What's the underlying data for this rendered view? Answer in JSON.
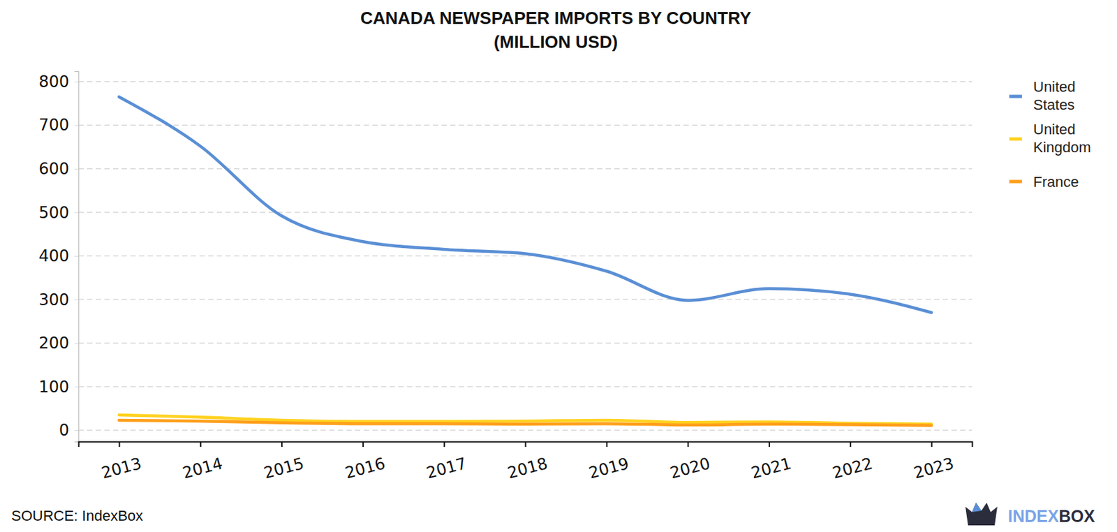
{
  "chart_data": {
    "type": "line",
    "title": [
      "CANADA NEWSPAPER IMPORTS BY COUNTRY",
      "(MILLION USD)"
    ],
    "categories": [
      "2013",
      "2014",
      "2015",
      "2016",
      "2017",
      "2018",
      "2019",
      "2020",
      "2021",
      "2022",
      "2023"
    ],
    "series": [
      {
        "name": "United States",
        "color": "#5a8fd5",
        "values": [
          765,
          652,
          492,
          433,
          415,
          405,
          365,
          298,
          325,
          312,
          270
        ]
      },
      {
        "name": "United Kingdom",
        "color": "#ffd21f",
        "values": [
          35,
          30,
          23,
          20,
          20,
          21,
          23,
          18,
          19,
          16,
          14
        ]
      },
      {
        "name": "France",
        "color": "#ff9f1a",
        "values": [
          23,
          21,
          17,
          15,
          15,
          14,
          15,
          12,
          14,
          13,
          11
        ]
      }
    ],
    "ylim": [
      -26,
      824
    ],
    "yticks": [
      0,
      100,
      200,
      300,
      400,
      500,
      600,
      700,
      800
    ],
    "grid": true,
    "legend": "top-right",
    "source": "SOURCE: IndexBox",
    "logo": [
      "INDEX",
      "BOX"
    ]
  }
}
